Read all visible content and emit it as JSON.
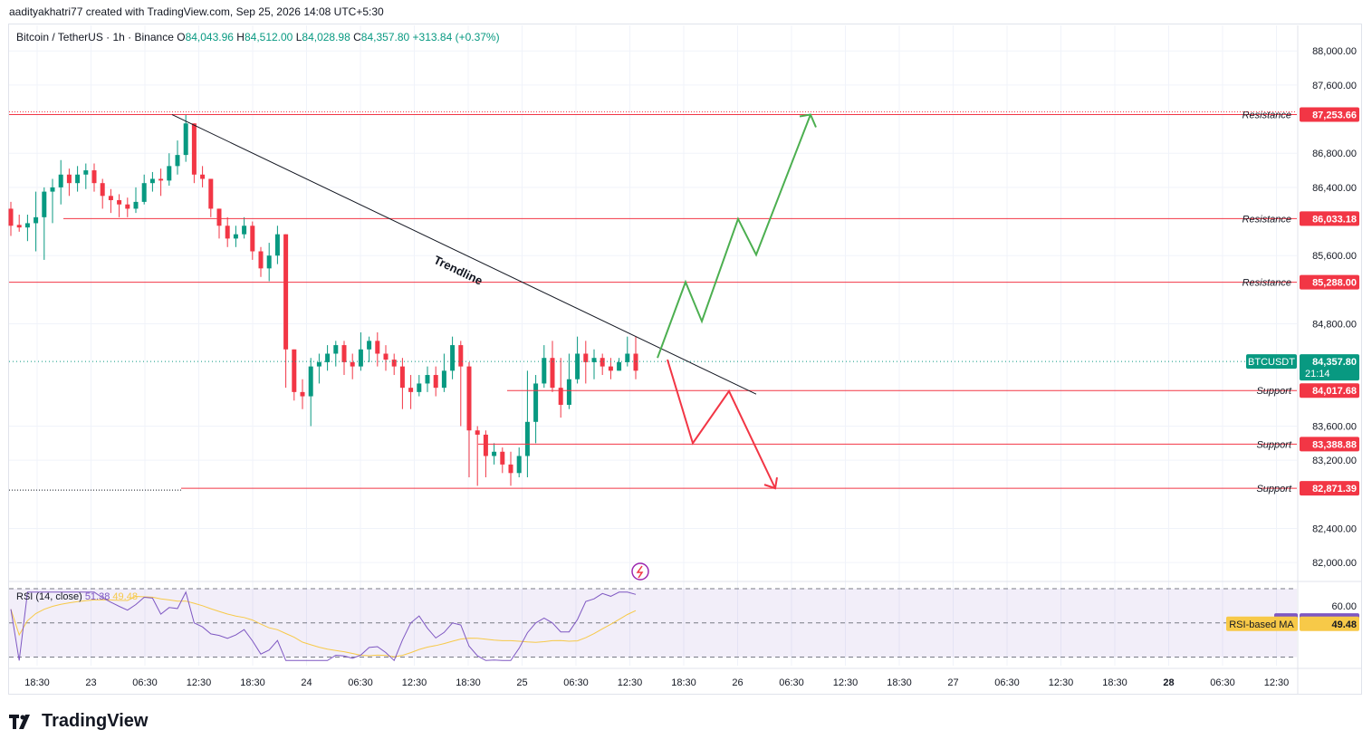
{
  "header": {
    "text": "aaditya​khatri77 created with TradingView.com, Sep 25, 2026 14:08 UTC+5:30"
  },
  "legend": {
    "symbol": "Bitcoin / TetherUS · 1h · Binance",
    "o_label": "O",
    "o": "84,043.96",
    "h_label": "H",
    "h": "84,512.00",
    "l_label": "L",
    "l": "84,028.98",
    "c_label": "C",
    "c": "84,357.80",
    "change": "+313.84 (+0.37%)"
  },
  "rsi_legend": {
    "title": "RSI (14, close)",
    "rsi": "51.38",
    "ma": "49.48"
  },
  "brand": {
    "name": "TradingView"
  },
  "colors": {
    "up": "#089981",
    "down": "#f23645",
    "level": "#f23645",
    "bull_path": "#4caf50",
    "bear_path": "#f23645",
    "rsi": "#7e57c2",
    "rsi_ma": "#f7c948"
  },
  "chart_data": {
    "type": "candlestick",
    "ylim": [
      81800,
      88300
    ],
    "y_ticks": [
      "82,000.00",
      "82,400.00",
      "83,200.00",
      "83,600.00",
      "84,800.00",
      "85,600.00",
      "86,400.00",
      "86,800.00",
      "87,600.00",
      "88,000.00"
    ],
    "x_ticks": [
      "18:30",
      "23",
      "06:30",
      "12:30",
      "18:30",
      "24",
      "06:30",
      "12:30",
      "18:30",
      "25",
      "06:30",
      "12:30",
      "18:30",
      "26",
      "06:30",
      "12:30",
      "18:30",
      "27",
      "06:30",
      "12:30",
      "18:30",
      "28",
      "06:30",
      "12:30"
    ],
    "price_label": {
      "symbol": "BTCUSDT",
      "price": "84,357.80",
      "countdown": "21:14"
    },
    "levels": [
      {
        "label": "Resistance",
        "value": "87,253.66",
        "y": 87253.66
      },
      {
        "label": "Resistance",
        "value": "86,033.18",
        "y": 86033.18
      },
      {
        "label": "Resistance",
        "value": "85,288.00",
        "y": 85288.0
      },
      {
        "label": "Support",
        "value": "84,017.68",
        "y": 84017.68
      },
      {
        "label": "Support",
        "value": "83,388.88",
        "y": 83388.88
      },
      {
        "label": "Support",
        "value": "82,871.39",
        "y": 82871.39
      }
    ],
    "trendline_label": "Trendline",
    "candles": [
      [
        86150,
        85950,
        86230,
        85830
      ],
      [
        85960,
        85930,
        86080,
        85880
      ],
      [
        85930,
        85980,
        86080,
        85770
      ],
      [
        85980,
        86050,
        86350,
        85650
      ],
      [
        86050,
        86350,
        86400,
        85550
      ],
      [
        86350,
        86400,
        86500,
        85980
      ],
      [
        86400,
        86550,
        86720,
        86200
      ],
      [
        86550,
        86450,
        86620,
        86300
      ],
      [
        86450,
        86550,
        86650,
        86350
      ],
      [
        86550,
        86600,
        86680,
        86380
      ],
      [
        86600,
        86450,
        86680,
        86350
      ],
      [
        86450,
        86300,
        86500,
        86150
      ],
      [
        86300,
        86250,
        86380,
        86100
      ],
      [
        86250,
        86200,
        86320,
        86050
      ],
      [
        86200,
        86150,
        86280,
        86050
      ],
      [
        86150,
        86230,
        86400,
        86100
      ],
      [
        86230,
        86450,
        86550,
        86200
      ],
      [
        86450,
        86500,
        86580,
        86350
      ],
      [
        86500,
        86480,
        86620,
        86300
      ],
      [
        86480,
        86650,
        86800,
        86420
      ],
      [
        86650,
        86780,
        86950,
        86550
      ],
      [
        86780,
        87150,
        87250,
        86700
      ],
      [
        87150,
        86550,
        87150,
        86450
      ],
      [
        86550,
        86500,
        86650,
        86400
      ],
      [
        86500,
        86150,
        86500,
        86050
      ],
      [
        86150,
        85950,
        86150,
        85800
      ],
      [
        85950,
        85800,
        86050,
        85700
      ],
      [
        85800,
        85850,
        85950,
        85700
      ],
      [
        85850,
        85950,
        86050,
        85800
      ],
      [
        85950,
        85650,
        86000,
        85550
      ],
      [
        85650,
        85450,
        85700,
        85350
      ],
      [
        85450,
        85600,
        85750,
        85300
      ],
      [
        85600,
        85850,
        85950,
        85500
      ],
      [
        85850,
        84500,
        85850,
        84050
      ],
      [
        84500,
        84000,
        84500,
        83900
      ],
      [
        84000,
        83950,
        84150,
        83800
      ],
      [
        83950,
        84300,
        84400,
        83600
      ],
      [
        84300,
        84350,
        84450,
        84100
      ],
      [
        84350,
        84450,
        84550,
        84250
      ],
      [
        84450,
        84550,
        84600,
        84300
      ],
      [
        84550,
        84350,
        84600,
        84200
      ],
      [
        84350,
        84300,
        84450,
        84150
      ],
      [
        84300,
        84500,
        84700,
        84250
      ],
      [
        84500,
        84600,
        84650,
        84350
      ],
      [
        84600,
        84450,
        84700,
        84300
      ],
      [
        84450,
        84380,
        84550,
        84250
      ],
      [
        84380,
        84300,
        84450,
        84200
      ],
      [
        84300,
        84050,
        84400,
        83800
      ],
      [
        84050,
        84000,
        84200,
        83800
      ],
      [
        84000,
        84100,
        84200,
        83950
      ],
      [
        84100,
        84200,
        84300,
        84000
      ],
      [
        84200,
        84050,
        84300,
        83950
      ],
      [
        84050,
        84250,
        84450,
        84000
      ],
      [
        84250,
        84550,
        84650,
        84150
      ],
      [
        84550,
        84300,
        84600,
        83600
      ],
      [
        84300,
        83550,
        84350,
        83000
      ],
      [
        83550,
        83500,
        83600,
        82900
      ],
      [
        83500,
        83250,
        83550,
        83000
      ],
      [
        83250,
        83300,
        83400,
        83150
      ],
      [
        83300,
        83150,
        83350,
        83050
      ],
      [
        83150,
        83050,
        83300,
        82900
      ],
      [
        83050,
        83250,
        83350,
        83000
      ],
      [
        83250,
        83650,
        84250,
        83000
      ],
      [
        83650,
        84100,
        84200,
        83400
      ],
      [
        84100,
        84400,
        84550,
        84050
      ],
      [
        84400,
        84050,
        84600,
        84000
      ],
      [
        84050,
        83850,
        84400,
        83700
      ],
      [
        83850,
        84150,
        84450,
        83800
      ],
      [
        84150,
        84450,
        84650,
        84100
      ],
      [
        84450,
        84350,
        84600,
        84100
      ],
      [
        84350,
        84400,
        84500,
        84150
      ],
      [
        84400,
        84300,
        84450,
        84200
      ],
      [
        84300,
        84250,
        84400,
        84150
      ],
      [
        84250,
        84350,
        84400,
        84250
      ],
      [
        84350,
        84450,
        84650,
        84300
      ],
      [
        84450,
        84250,
        84650,
        84150
      ]
    ],
    "rsi": {
      "ylim": [
        25,
        70
      ],
      "ticks": [
        "60.00"
      ],
      "rsi_label": "RSI",
      "rsi_value": "51.38",
      "ma_label": "RSI-based MA",
      "ma_value": "49.48"
    },
    "scenarios": {
      "bullish_target": 87253.66,
      "bearish_target": 82871.39
    }
  }
}
